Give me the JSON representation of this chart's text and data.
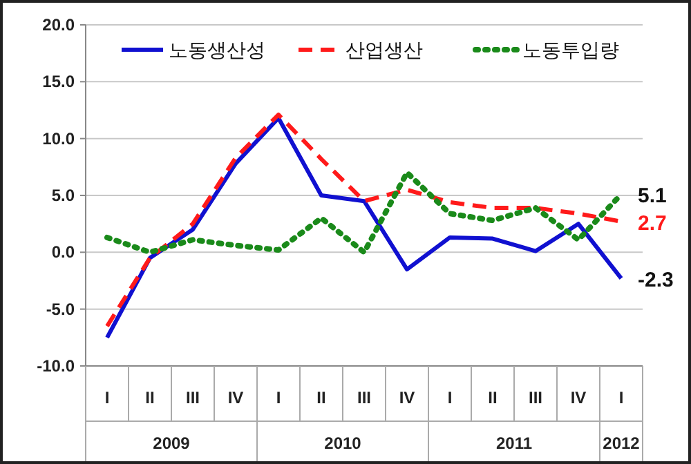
{
  "chart_data": {
    "type": "line",
    "categories": [
      "I",
      "II",
      "III",
      "IV",
      "I",
      "II",
      "III",
      "IV",
      "I",
      "II",
      "III",
      "IV",
      "I"
    ],
    "series": [
      {
        "name": "노동생산성",
        "color": "#1010d0",
        "line_style": "solid",
        "values": [
          -7.5,
          -0.5,
          2.0,
          7.8,
          11.8,
          5.0,
          4.5,
          -1.5,
          1.3,
          1.2,
          0.1,
          2.5,
          -2.3
        ],
        "value_labels": [
          null,
          null,
          null,
          null,
          null,
          null,
          null,
          null,
          null,
          null,
          null,
          null,
          "-2.3"
        ]
      },
      {
        "name": "산업생산",
        "color": "#ff1a1a",
        "line_style": "dashed",
        "values": [
          -6.5,
          -0.5,
          2.5,
          8.3,
          12.1,
          8.2,
          4.5,
          5.5,
          4.4,
          3.9,
          3.9,
          3.4,
          2.7
        ],
        "value_labels": [
          null,
          null,
          null,
          null,
          null,
          null,
          null,
          null,
          null,
          null,
          null,
          null,
          "2.7"
        ]
      },
      {
        "name": "노동투입량",
        "color": "#1a8a1a",
        "line_style": "dotted",
        "values": [
          1.3,
          0.0,
          1.1,
          0.6,
          0.2,
          3.0,
          0.0,
          7.0,
          3.4,
          2.8,
          3.9,
          1.1,
          5.1
        ],
        "value_labels": [
          null,
          null,
          null,
          null,
          null,
          null,
          null,
          null,
          null,
          null,
          null,
          null,
          "5.1"
        ]
      }
    ],
    "ylim": [
      -10,
      20
    ],
    "yticks": [
      {
        "value": -10,
        "label": "-10.0"
      },
      {
        "value": -5,
        "label": "-5.0"
      },
      {
        "value": 0,
        "label": "0.0"
      },
      {
        "value": 5,
        "label": "5.0"
      },
      {
        "value": 10,
        "label": "10.0"
      },
      {
        "value": 15,
        "label": "15.0"
      },
      {
        "value": 20,
        "label": "20.0"
      }
    ],
    "grid": "y",
    "legend": "top",
    "marker": "none",
    "annotations": [
      "2009",
      "2010",
      "2011",
      "2012"
    ]
  }
}
